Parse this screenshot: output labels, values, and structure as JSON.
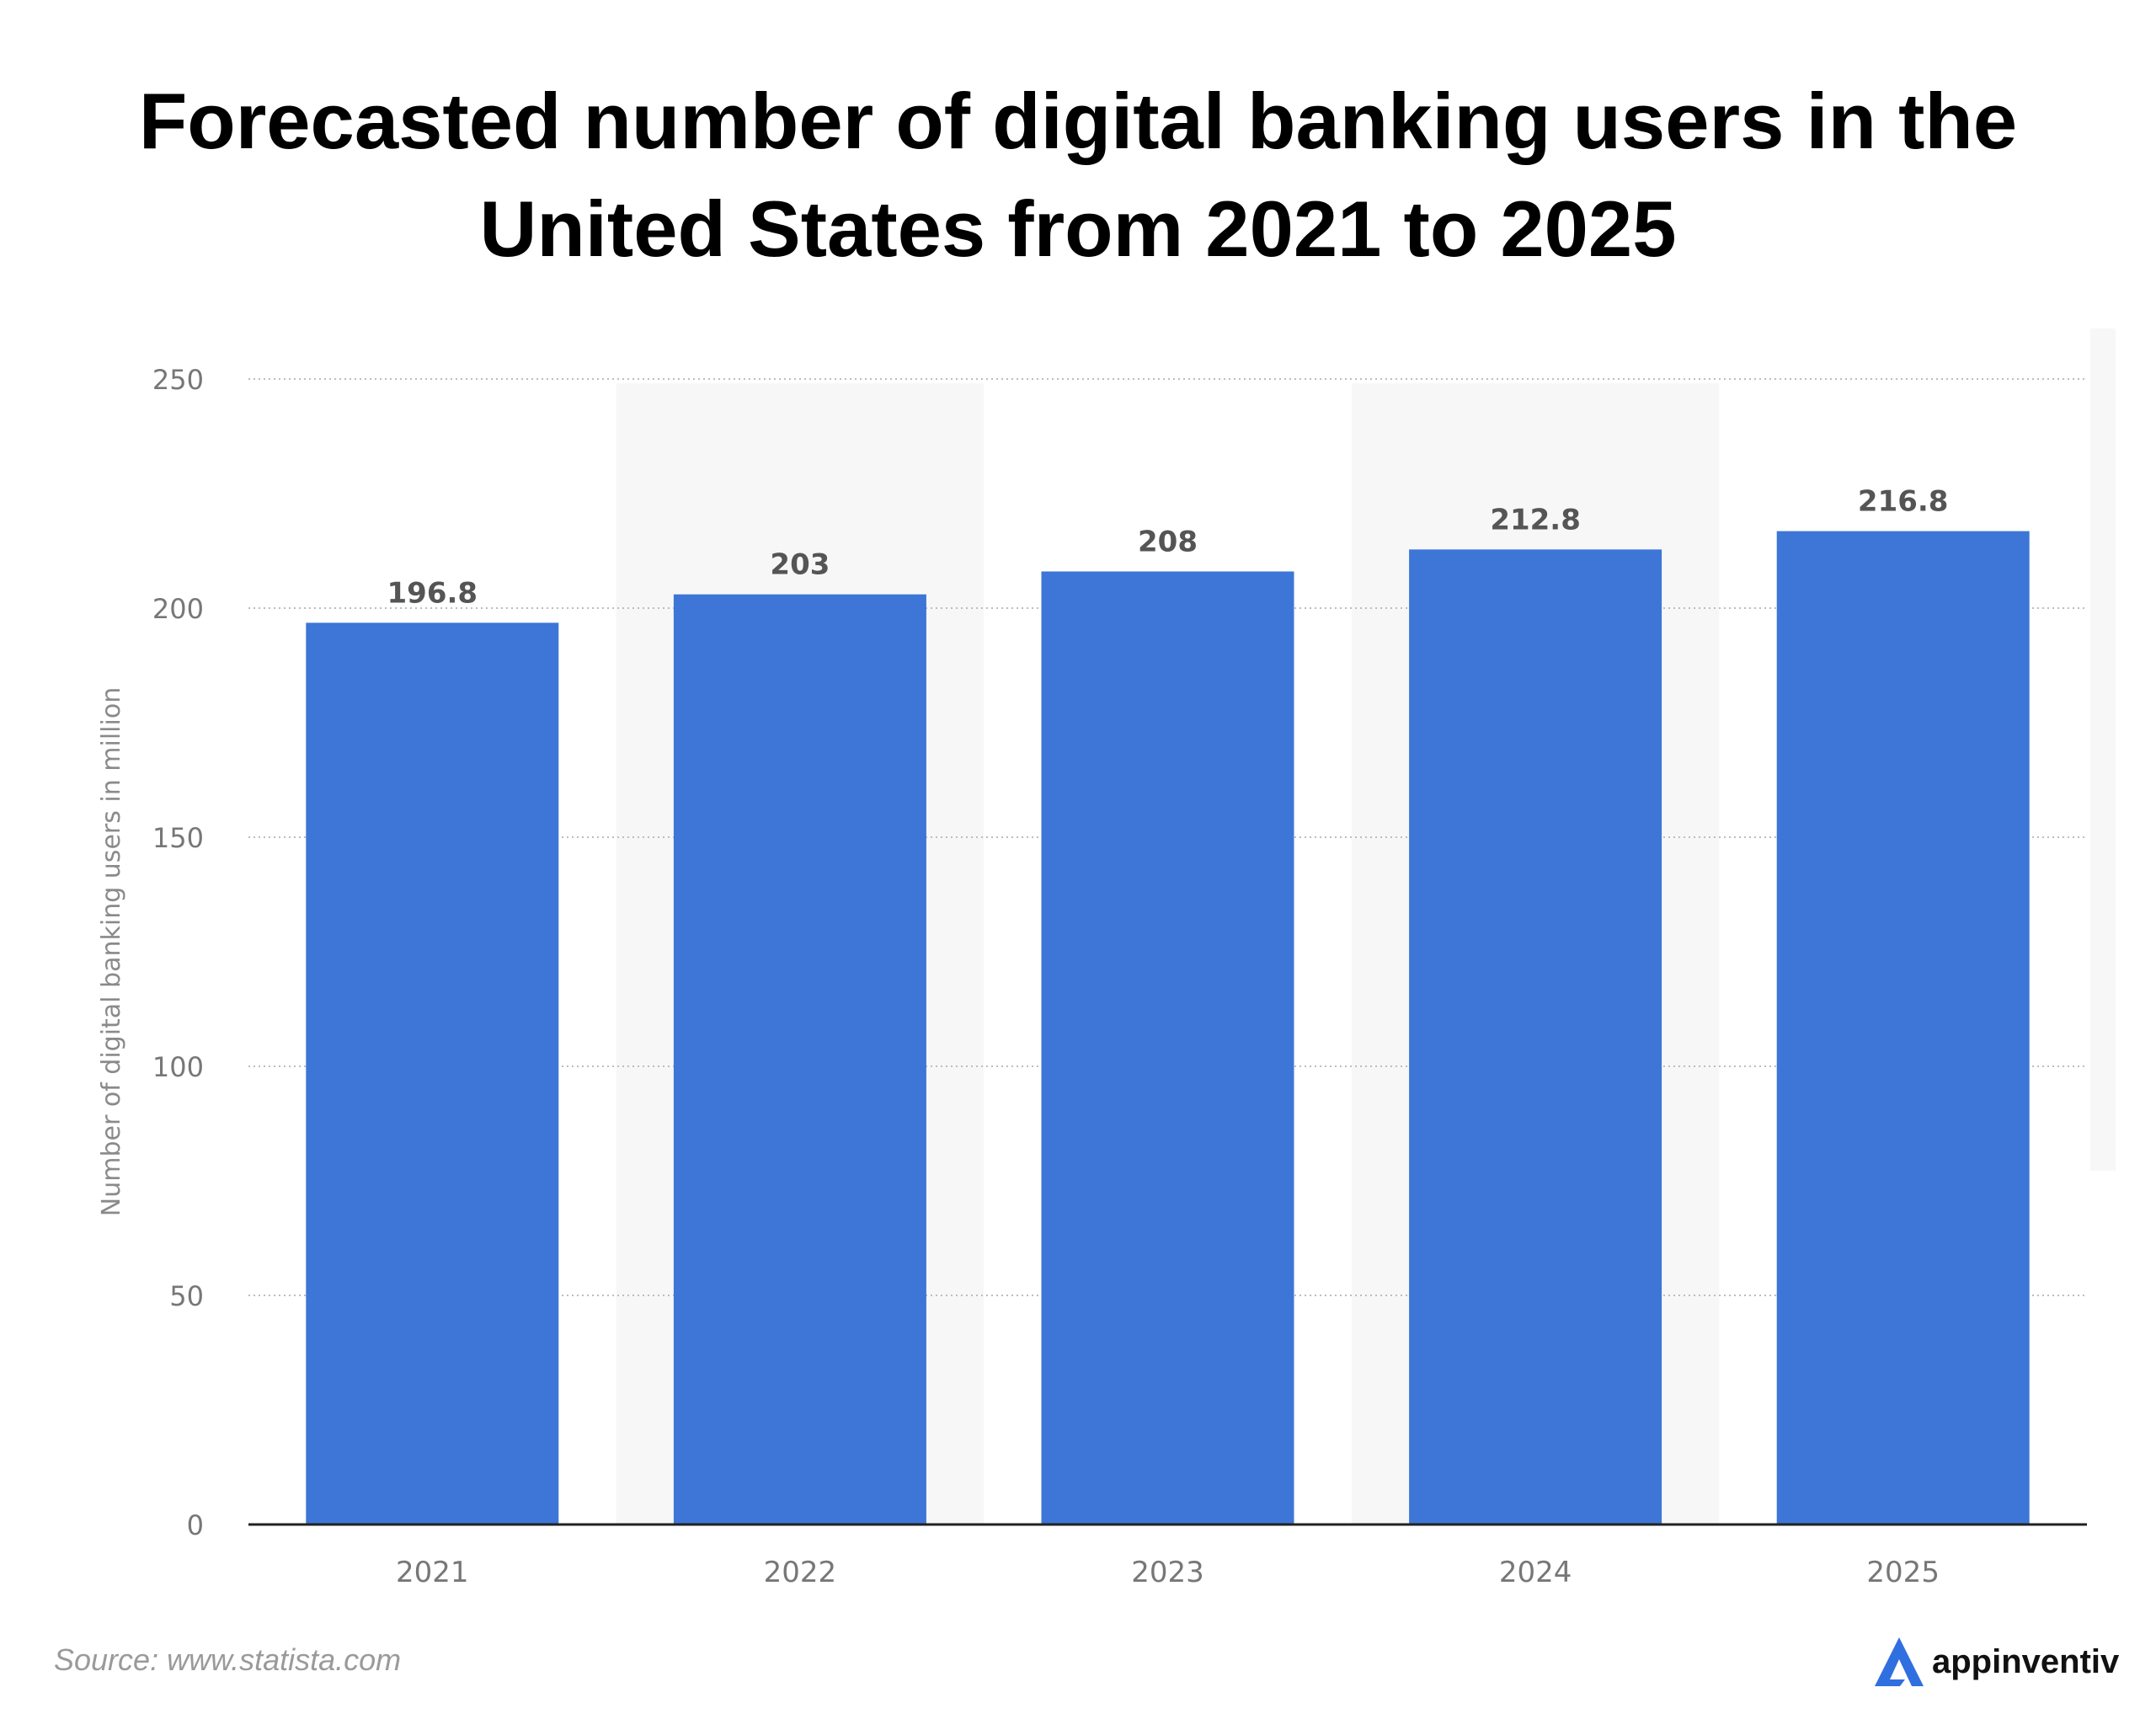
{
  "title": "Forecasted number of digital banking users in the United States from 2021 to 2025",
  "source": "Source: www.statista.com",
  "brand": {
    "name": "appinventiv",
    "icon": "appinventiv-logo-icon"
  },
  "colors": {
    "bar": "#3d76d6",
    "stripe": "#f7f7f7",
    "grid": "#bdbdbd",
    "axis": "#222222",
    "label": "#555555",
    "tick": "#777777",
    "brand_icon": "#2f6fe0"
  },
  "chart_data": {
    "type": "bar",
    "categories": [
      "2021",
      "2022",
      "2023",
      "2024",
      "2025"
    ],
    "values": [
      196.8,
      203,
      208,
      212.8,
      216.8
    ],
    "value_labels": [
      "196.8",
      "203",
      "208",
      "212.8",
      "216.8"
    ],
    "ylabel": "Number of digital banking users in million",
    "xlabel": "",
    "ylim": [
      0,
      250
    ],
    "yticks": [
      0,
      50,
      100,
      150,
      200,
      250
    ],
    "ytick_labels": [
      "0",
      "50",
      "100",
      "150",
      "200",
      "250"
    ],
    "grid": true,
    "alternate_column_shading": true
  }
}
